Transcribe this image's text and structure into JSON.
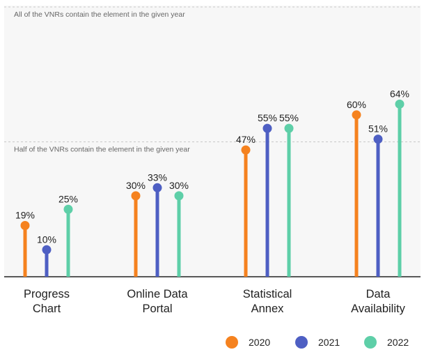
{
  "chart_data": {
    "type": "lollipop",
    "categories": [
      [
        "Progress",
        "Chart"
      ],
      [
        "Online Data",
        "Portal"
      ],
      [
        "Statistical",
        "Annex"
      ],
      [
        "Data",
        "Availability"
      ]
    ],
    "series": [
      {
        "name": "2020",
        "color": "#f5821f",
        "values": [
          19,
          30,
          47,
          60
        ]
      },
      {
        "name": "2021",
        "color": "#4e5fc3",
        "values": [
          10,
          33,
          55,
          51
        ]
      },
      {
        "name": "2022",
        "color": "#5ecfa8",
        "values": [
          25,
          30,
          55,
          64
        ]
      }
    ],
    "ylim": [
      0,
      100
    ],
    "value_suffix": "%",
    "reference_lines": [
      {
        "value": 100,
        "label": "All of the VNRs contain the element in the given year"
      },
      {
        "value": 50,
        "label": "Half of the VNRs contain the element in the given year"
      }
    ],
    "legend_position": "bottom-right",
    "background_color": "#f7f7f7",
    "axis_color": "#222222"
  }
}
